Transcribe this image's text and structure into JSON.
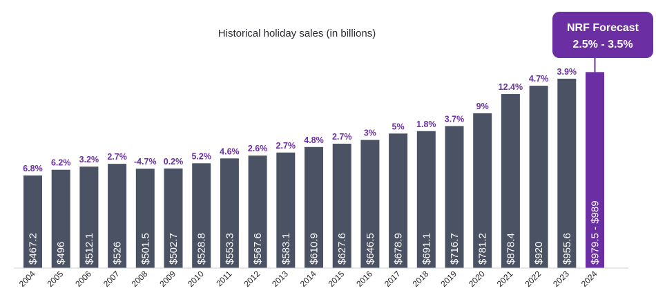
{
  "chart_data": {
    "type": "bar",
    "title": "Historical holiday sales (in billions)",
    "categories": [
      "2004",
      "2005",
      "2006",
      "2007",
      "2008",
      "2009",
      "2010",
      "2011",
      "2012",
      "2013",
      "2014",
      "2015",
      "2016",
      "2017",
      "2018",
      "2019",
      "2020",
      "2021",
      "2022",
      "2023",
      "2024"
    ],
    "values": [
      467.2,
      496,
      512.1,
      526,
      501.5,
      502.7,
      528.8,
      553.3,
      567.6,
      583.1,
      610.9,
      627.6,
      646.5,
      678.9,
      691.1,
      716.7,
      781.2,
      878.4,
      920,
      955.6,
      989
    ],
    "value_labels": [
      "$467.2",
      "$496",
      "$512.1",
      "$526",
      "$501.5",
      "$502.7",
      "$528.8",
      "$553.3",
      "$567.6",
      "$583.1",
      "$610.9",
      "$627.6",
      "$646.5",
      "$678.9",
      "$691.1",
      "$716.7",
      "$781.2",
      "$878.4",
      "$920",
      "$955.6",
      "$979.5 - $989"
    ],
    "growth_labels": [
      "6.8%",
      "6.2%",
      "3.2%",
      "2.7%",
      "-4.7%",
      "0.2%",
      "5.2%",
      "4.6%",
      "2.6%",
      "2.7%",
      "4.8%",
      "2.7%",
      "3%",
      "5%",
      "1.8%",
      "3.7%",
      "9%",
      "12.4%",
      "4.7%",
      "3.9%",
      ""
    ],
    "ylim": [
      0,
      1000
    ],
    "grid": false,
    "colors": {
      "bar": "#4a5263",
      "forecast": "#6b2fa3",
      "growth_label": "#6b2fa3"
    },
    "forecast": {
      "index": 20,
      "line1": "NRF Forecast",
      "line2": "2.5% - 3.5%"
    }
  }
}
